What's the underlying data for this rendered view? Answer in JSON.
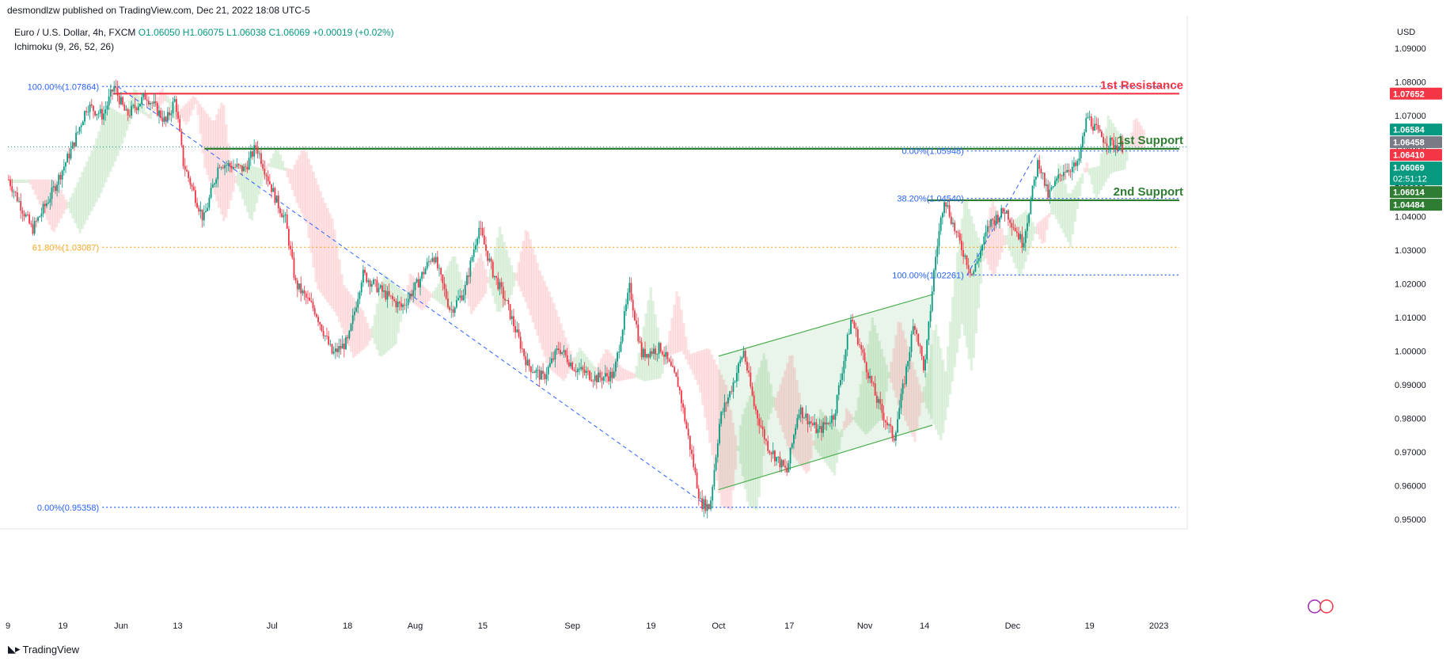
{
  "header": {
    "published": "desmondlzw published on TradingView.com, Dec 21, 2022 18:08 UTC-5",
    "symbol": "Euro / U.S. Dollar, 4h, FXCM",
    "ohlc": "O1.06050 H1.06075 L1.06038 C1.06069 +0.00019 (+0.02%)",
    "indicator": "Ichimoku (9, 26, 52, 26)",
    "currency": "USD"
  },
  "footer": {
    "brand": "TradingView"
  },
  "chart_data": {
    "type": "line",
    "title": "Euro / U.S. Dollar, 4h, FXCM",
    "ylim": [
      0.9475,
      1.0935
    ],
    "y_ticks": [
      0.95,
      0.96,
      0.97,
      0.98,
      0.99,
      1.0,
      1.01,
      1.02,
      1.03,
      1.04,
      1.05,
      1.06,
      1.07,
      1.08,
      1.09
    ],
    "y_tick_labels": [
      "0.95000",
      "0.96000",
      "0.97000",
      "0.98000",
      "0.99000",
      "1.00000",
      "1.01000",
      "1.02000",
      "1.03000",
      "1.04000",
      "1.05000",
      "1.06000",
      "1.07000",
      "1.08000",
      "1.09000"
    ],
    "x_ticks": [
      {
        "label": "9",
        "t": 0.0
      },
      {
        "label": "19",
        "t": 70.0
      },
      {
        "label": "Jun",
        "t": 144.0
      },
      {
        "label": "13",
        "t": 216.0
      },
      {
        "label": "Jul",
        "t": 336.0
      },
      {
        "label": "18",
        "t": 432.0
      },
      {
        "label": "Aug",
        "t": 518.0
      },
      {
        "label": "15",
        "t": 604.0
      },
      {
        "label": "Sep",
        "t": 718.0
      },
      {
        "label": "19",
        "t": 818.0
      },
      {
        "label": "Oct",
        "t": 904.0
      },
      {
        "label": "17",
        "t": 994.0
      },
      {
        "label": "Nov",
        "t": 1090.0
      },
      {
        "label": "14",
        "t": 1166.0
      },
      {
        "label": "Dec",
        "t": 1278.0
      },
      {
        "label": "19",
        "t": 1376.0
      },
      {
        "label": "2023",
        "t": 1464.0
      }
    ],
    "series": [
      {
        "color": "#089981",
        "price_path": [
          [
            0,
            1.051
          ],
          [
            30,
            1.036
          ],
          [
            55,
            1.047
          ],
          [
            80,
            1.06
          ],
          [
            100,
            1.073
          ],
          [
            120,
            1.07
          ],
          [
            134,
            1.0786
          ],
          [
            150,
            1.07
          ],
          [
            175,
            1.076
          ],
          [
            200,
            1.068
          ],
          [
            212,
            1.075
          ],
          [
            222,
            1.056
          ],
          [
            248,
            1.039
          ],
          [
            268,
            1.056
          ],
          [
            300,
            1.054
          ],
          [
            315,
            1.061
          ],
          [
            340,
            1.045
          ],
          [
            352,
            1.039
          ],
          [
            365,
            1.02
          ],
          [
            390,
            1.012
          ],
          [
            412,
            0.999
          ],
          [
            432,
            1.003
          ],
          [
            450,
            1.023
          ],
          [
            478,
            1.017
          ],
          [
            500,
            1.013
          ],
          [
            520,
            1.02
          ],
          [
            540,
            1.029
          ],
          [
            562,
            1.012
          ],
          [
            580,
            1.018
          ],
          [
            598,
            1.037
          ],
          [
            615,
            1.024
          ],
          [
            632,
            1.015
          ],
          [
            660,
            0.996
          ],
          [
            680,
            0.992
          ],
          [
            700,
            1.001
          ],
          [
            720,
            0.995
          ],
          [
            748,
            0.992
          ],
          [
            770,
            0.993
          ],
          [
            790,
            1.019
          ],
          [
            805,
            0.999
          ],
          [
            830,
            1.001
          ],
          [
            852,
            0.99
          ],
          [
            868,
            0.97
          ],
          [
            880,
            0.955
          ],
          [
            892,
            0.9536
          ],
          [
            905,
            0.98
          ],
          [
            918,
            0.988
          ],
          [
            935,
            1.0
          ],
          [
            948,
            0.984
          ],
          [
            965,
            0.972
          ],
          [
            990,
            0.964
          ],
          [
            1005,
            0.983
          ],
          [
            1030,
            0.976
          ],
          [
            1050,
            0.981
          ],
          [
            1072,
            1.01
          ],
          [
            1090,
            0.996
          ],
          [
            1105,
            0.985
          ],
          [
            1126,
            0.974
          ],
          [
            1140,
            0.992
          ],
          [
            1152,
            1.009
          ],
          [
            1165,
            0.994
          ],
          [
            1178,
            1.026
          ],
          [
            1190,
            1.046
          ],
          [
            1205,
            1.035
          ],
          [
            1226,
            1.0226
          ],
          [
            1248,
            1.038
          ],
          [
            1268,
            1.042
          ],
          [
            1290,
            1.032
          ],
          [
            1310,
            1.057
          ],
          [
            1322,
            1.046
          ],
          [
            1342,
            1.054
          ],
          [
            1360,
            1.055
          ],
          [
            1372,
            1.07
          ],
          [
            1388,
            1.064
          ],
          [
            1400,
            1.062
          ],
          [
            1418,
            1.0607
          ]
        ]
      }
    ],
    "fib_levels": [
      {
        "label": "100.00%(1.07864)",
        "price": 1.07864,
        "color": "#2962ff",
        "t0": 120,
        "t1": 1490
      },
      {
        "label": "61.80%(1.03087)",
        "price": 1.03087,
        "color": "#f5a623",
        "t0": 120,
        "t1": 1490
      },
      {
        "label": "0.00%(0.95358)",
        "price": 0.95358,
        "color": "#2962ff",
        "t0": 120,
        "t1": 1490
      },
      {
        "label": "100.00%(1.02261)",
        "price": 1.02261,
        "color": "#2962ff",
        "t0": 1220,
        "t1": 1490
      },
      {
        "label": "38.20%(1.04540)",
        "price": 1.0454,
        "color": "#2962ff",
        "t0": 1220,
        "t1": 1490
      },
      {
        "label": "0.00%(1.05948)",
        "price": 1.05948,
        "color": "#2962ff",
        "t0": 1220,
        "t1": 1490
      }
    ],
    "horizontal_levels": [
      {
        "label": "1st Resistance",
        "price": 1.07652,
        "color": "#f23645",
        "t0": 134,
        "t1": 1490
      },
      {
        "label": "1st Support",
        "price": 1.06014,
        "color": "#2e7d32",
        "t0": 250,
        "t1": 1490
      },
      {
        "label": "2nd Support",
        "price": 1.04484,
        "color": "#2e7d32",
        "t0": 1170,
        "t1": 1490
      }
    ],
    "price_tags": [
      {
        "text": "1.07652",
        "price": 1.07652,
        "color": "#f23645"
      },
      {
        "text": "1.06584",
        "price": 1.06584,
        "color": "#089981"
      },
      {
        "text": "1.06458",
        "price": 1.06458,
        "color": "#787b86"
      },
      {
        "text": "1.06410",
        "price": 1.0641,
        "color": "#f23645"
      },
      {
        "text": "1.06069",
        "price": 1.06069,
        "color": "#089981",
        "sub": "02:51:12"
      },
      {
        "text": "1.06014",
        "price": 1.06014,
        "color": "#2e7d32"
      },
      {
        "text": "1.04484",
        "price": 1.04484,
        "color": "#2e7d32"
      }
    ],
    "channel": {
      "upper": [
        [
          904,
          0.9985
        ],
        [
          1176,
          1.0168
        ]
      ],
      "lower": [
        [
          904,
          0.9588
        ],
        [
          1176,
          0.978
        ]
      ]
    },
    "trendlines": [
      {
        "from": [
          140,
          1.0786
        ],
        "to": [
          892,
          0.9536
        ]
      },
      {
        "from": [
          1220,
          1.0226
        ],
        "to": [
          1310,
          1.0595
        ]
      }
    ]
  }
}
